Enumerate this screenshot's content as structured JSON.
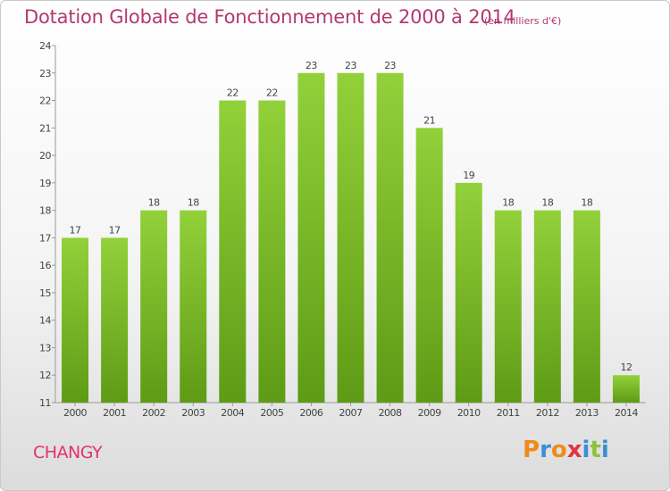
{
  "header": {
    "title": "Dotation Globale de Fonctionnement de 2000 à 2014",
    "subtitle": "(en milliers d'€)"
  },
  "footer": {
    "commune": "CHANGY",
    "logo_text": "Proxiti",
    "logo_colors": [
      "#f08a1c",
      "#3a8fd6",
      "#f08a1c",
      "#e2333f",
      "#3a8fd6",
      "#8bc43f",
      "#3a8fd6"
    ]
  },
  "colors": {
    "title": "#b3386f",
    "commune": "#e0346b",
    "bar_top": "#92d13a",
    "bar_bottom": "#5e9b16"
  },
  "chart_data": {
    "type": "bar",
    "categories": [
      "2000",
      "2001",
      "2002",
      "2003",
      "2004",
      "2005",
      "2006",
      "2007",
      "2008",
      "2009",
      "2010",
      "2011",
      "2012",
      "2013",
      "2014"
    ],
    "values": [
      17,
      17,
      18,
      18,
      22,
      22,
      23,
      23,
      23,
      21,
      19,
      18,
      18,
      18,
      12
    ],
    "ylim": [
      11,
      24
    ],
    "yticks": [
      11,
      12,
      13,
      14,
      15,
      16,
      17,
      18,
      19,
      20,
      21,
      22,
      23,
      24
    ],
    "grid": false,
    "legend": "none",
    "title": "Dotation Globale de Fonctionnement de 2000 à 2014",
    "ylabel": "(en milliers d'€)"
  }
}
